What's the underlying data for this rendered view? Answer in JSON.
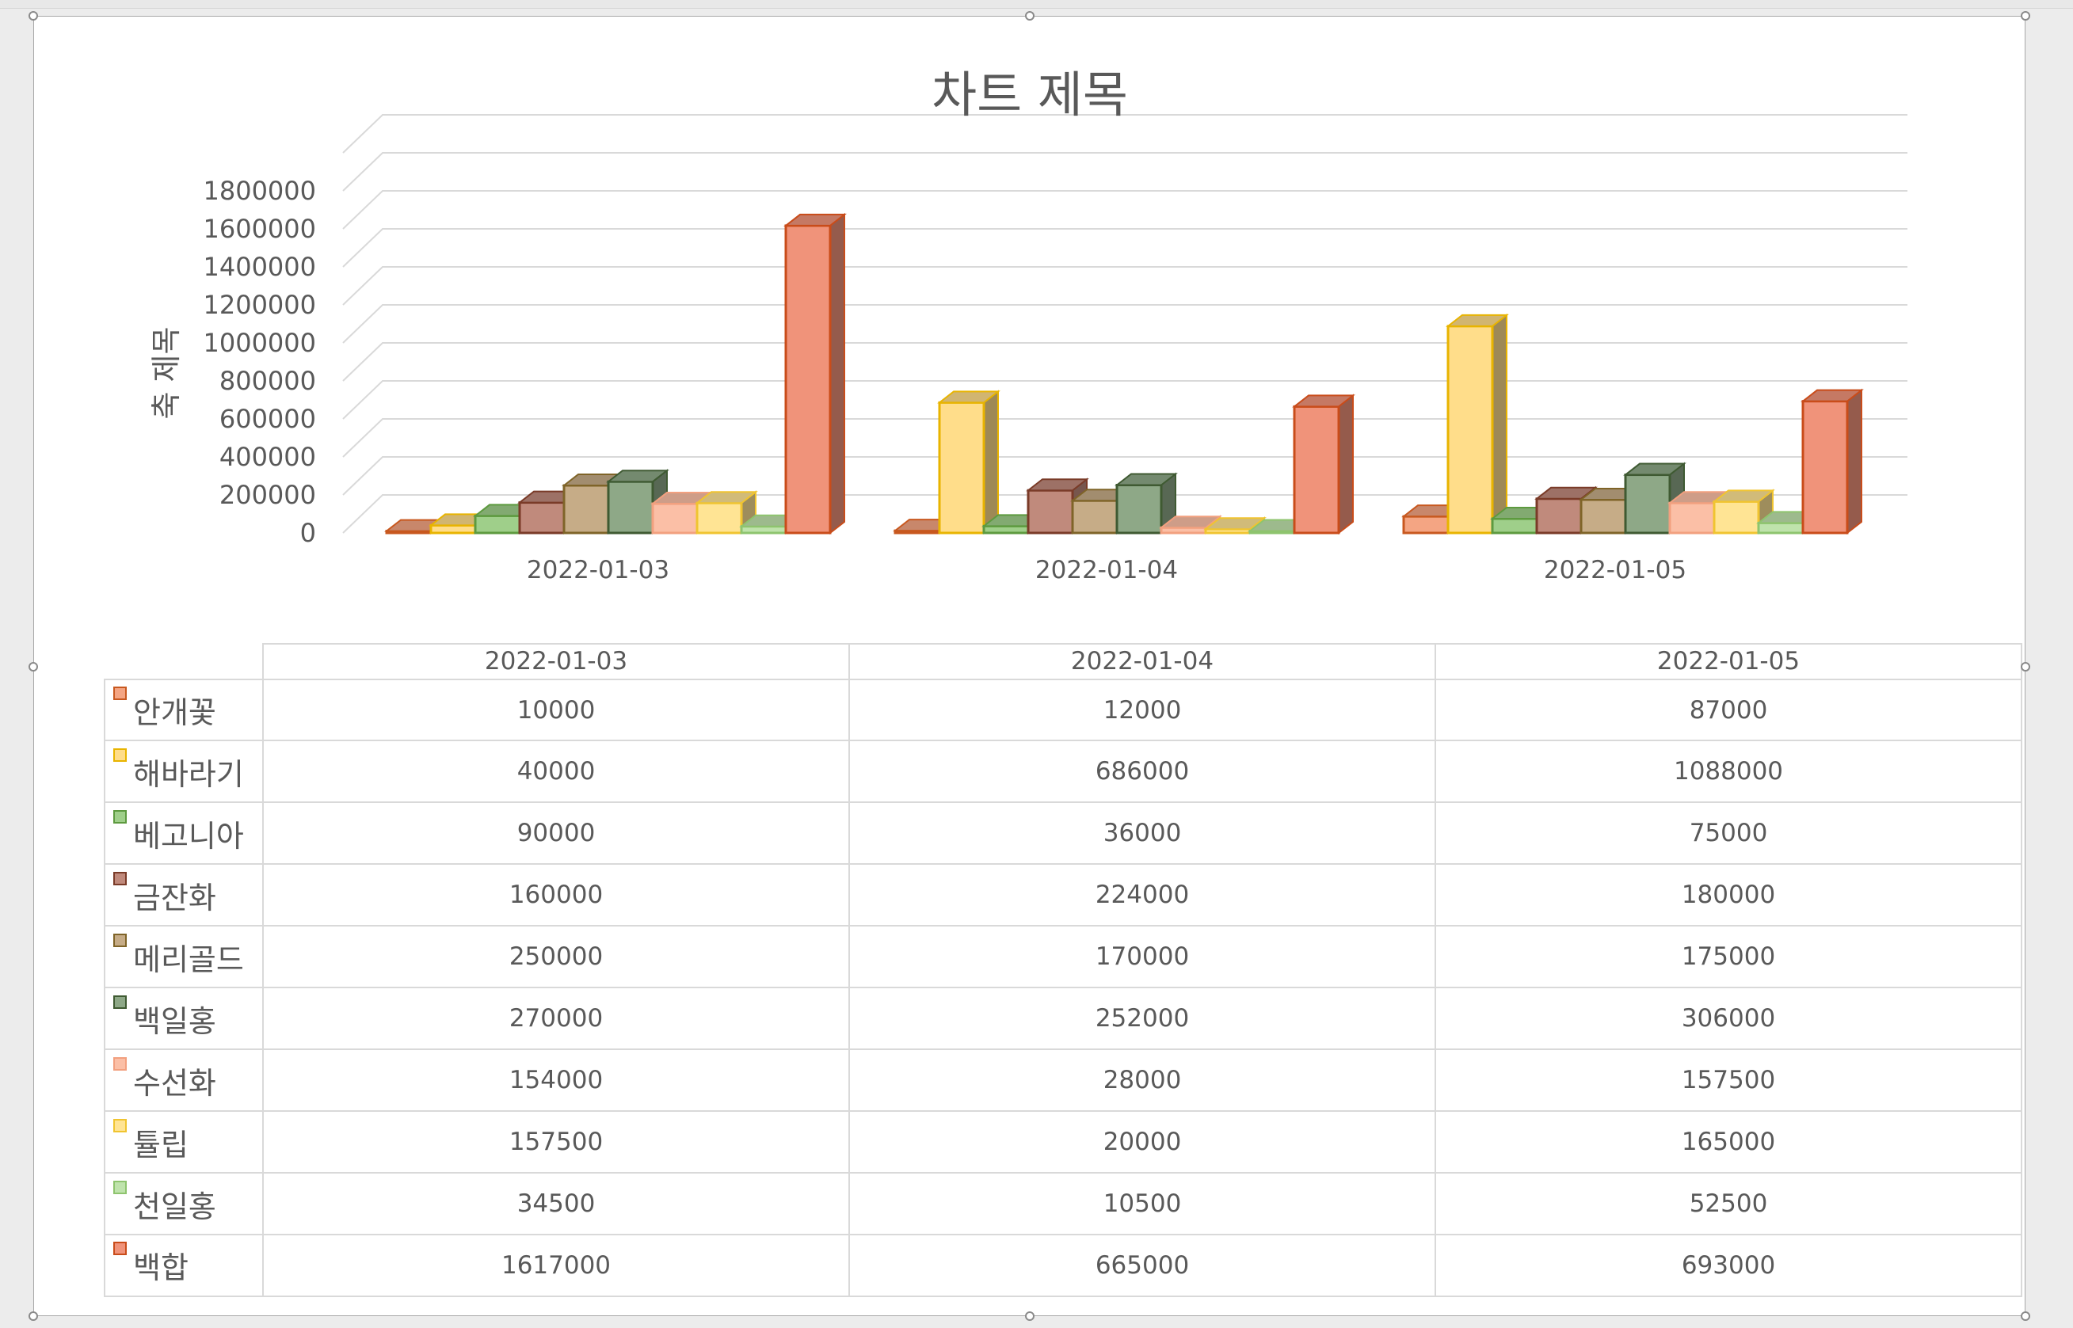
{
  "chart_data": {
    "type": "bar",
    "title": "차트 제목",
    "xlabel": "",
    "ylabel": "축 제목",
    "ylim": [
      0,
      1800000
    ],
    "yticks": [
      0,
      200000,
      400000,
      600000,
      800000,
      1000000,
      1200000,
      1400000,
      1600000,
      1800000
    ],
    "ytick_labels": [
      "0",
      "200000",
      "400000",
      "600000",
      "800000",
      "1000000",
      "1200000",
      "1400000",
      "1600000",
      "1800000"
    ],
    "grid": true,
    "style": "3d-clustered-column with data table",
    "categories": [
      "2022-01-03",
      "2022-01-04",
      "2022-01-05"
    ],
    "series": [
      {
        "name": "안개꽃",
        "values": [
          10000,
          12000,
          87000
        ],
        "fill": "#f4a583",
        "stroke": "#c8581f"
      },
      {
        "name": "해바라기",
        "values": [
          40000,
          686000,
          1088000
        ],
        "fill": "#ffdd8a",
        "stroke": "#e8b400"
      },
      {
        "name": "베고니아",
        "values": [
          90000,
          36000,
          75000
        ],
        "fill": "#9fcf8a",
        "stroke": "#5d9a3f"
      },
      {
        "name": "금잔화",
        "values": [
          160000,
          224000,
          180000
        ],
        "fill": "#c08a7c",
        "stroke": "#7a3b28"
      },
      {
        "name": "메리골드",
        "values": [
          250000,
          170000,
          175000
        ],
        "fill": "#c6ac87",
        "stroke": "#7f6428"
      },
      {
        "name": "백일홍",
        "values": [
          270000,
          252000,
          306000
        ],
        "fill": "#8ea887",
        "stroke": "#3f5a32"
      },
      {
        "name": "수선화",
        "values": [
          154000,
          28000,
          157500
        ],
        "fill": "#fbbfa6",
        "stroke": "#f2a07f"
      },
      {
        "name": "튤립",
        "values": [
          157500,
          20000,
          165000
        ],
        "fill": "#ffe494",
        "stroke": "#f0c430"
      },
      {
        "name": "천일홍",
        "values": [
          34500,
          10500,
          52500
        ],
        "fill": "#bfe3ac",
        "stroke": "#8ec46e"
      },
      {
        "name": "백합",
        "values": [
          1617000,
          665000,
          693000
        ],
        "fill": "#f0937a",
        "stroke": "#c94c1a"
      }
    ],
    "table": {
      "rows": [
        [
          "10000",
          "12000",
          "87000"
        ],
        [
          "40000",
          "686000",
          "1088000"
        ],
        [
          "90000",
          "36000",
          "75000"
        ],
        [
          "160000",
          "224000",
          "180000"
        ],
        [
          "250000",
          "170000",
          "175000"
        ],
        [
          "270000",
          "252000",
          "306000"
        ],
        [
          "154000",
          "28000",
          "157500"
        ],
        [
          "157500",
          "20000",
          "165000"
        ],
        [
          "34500",
          "10500",
          "52500"
        ],
        [
          "1617000",
          "665000",
          "693000"
        ]
      ]
    }
  }
}
